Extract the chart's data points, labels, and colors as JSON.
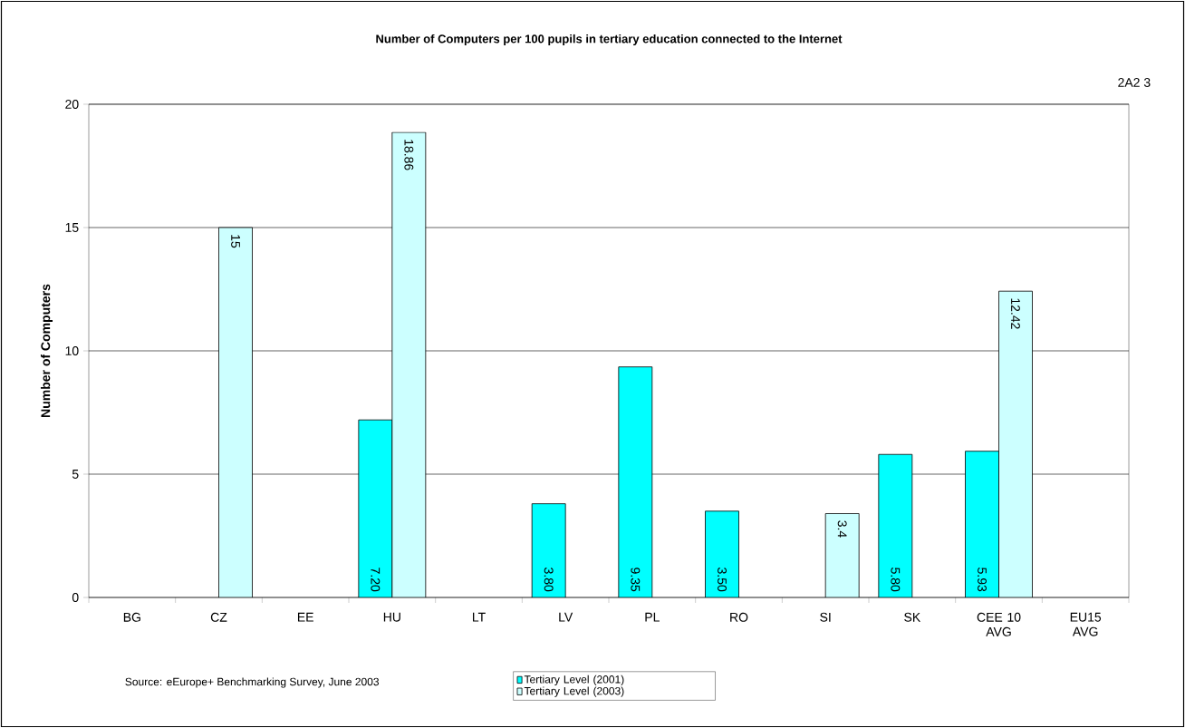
{
  "chart_data": {
    "type": "bar",
    "title": "Number of Computers per 100 pupils in tertiary education connected to the Internet",
    "ylabel": "Number of Computers",
    "annotations": [
      "2A2 3",
      "Source: eEurope+ Benchmarking Survey, June 2003"
    ],
    "categories": [
      "BG",
      "CZ",
      "EE",
      "HU",
      "LT",
      "LV",
      "PL",
      "RO",
      "SI",
      "SK",
      "CEE 10 AVG",
      "EU15 AVG"
    ],
    "series": [
      {
        "name": "Tertiary Level (2001)",
        "color": "#00ffff",
        "values": [
          null,
          null,
          null,
          7.2,
          null,
          3.8,
          9.35,
          3.5,
          null,
          5.8,
          5.93,
          null
        ],
        "value_labels": [
          null,
          null,
          null,
          "7.20",
          null,
          "3.80",
          "9.35",
          "3.50",
          null,
          "5.80",
          "5.93",
          null
        ]
      },
      {
        "name": "Tertiary Level (2003)",
        "color": "#ccffff",
        "values": [
          null,
          15,
          null,
          18.86,
          null,
          null,
          null,
          null,
          3.4,
          null,
          12.42,
          null
        ],
        "value_labels": [
          null,
          "15",
          null,
          "18.86",
          null,
          null,
          null,
          null,
          "3.4",
          null,
          "12.42",
          null
        ]
      }
    ],
    "ylim": [
      0,
      20
    ],
    "yticks": [
      0,
      5,
      10,
      15,
      20
    ],
    "grid": "y",
    "legend": "bottom"
  }
}
